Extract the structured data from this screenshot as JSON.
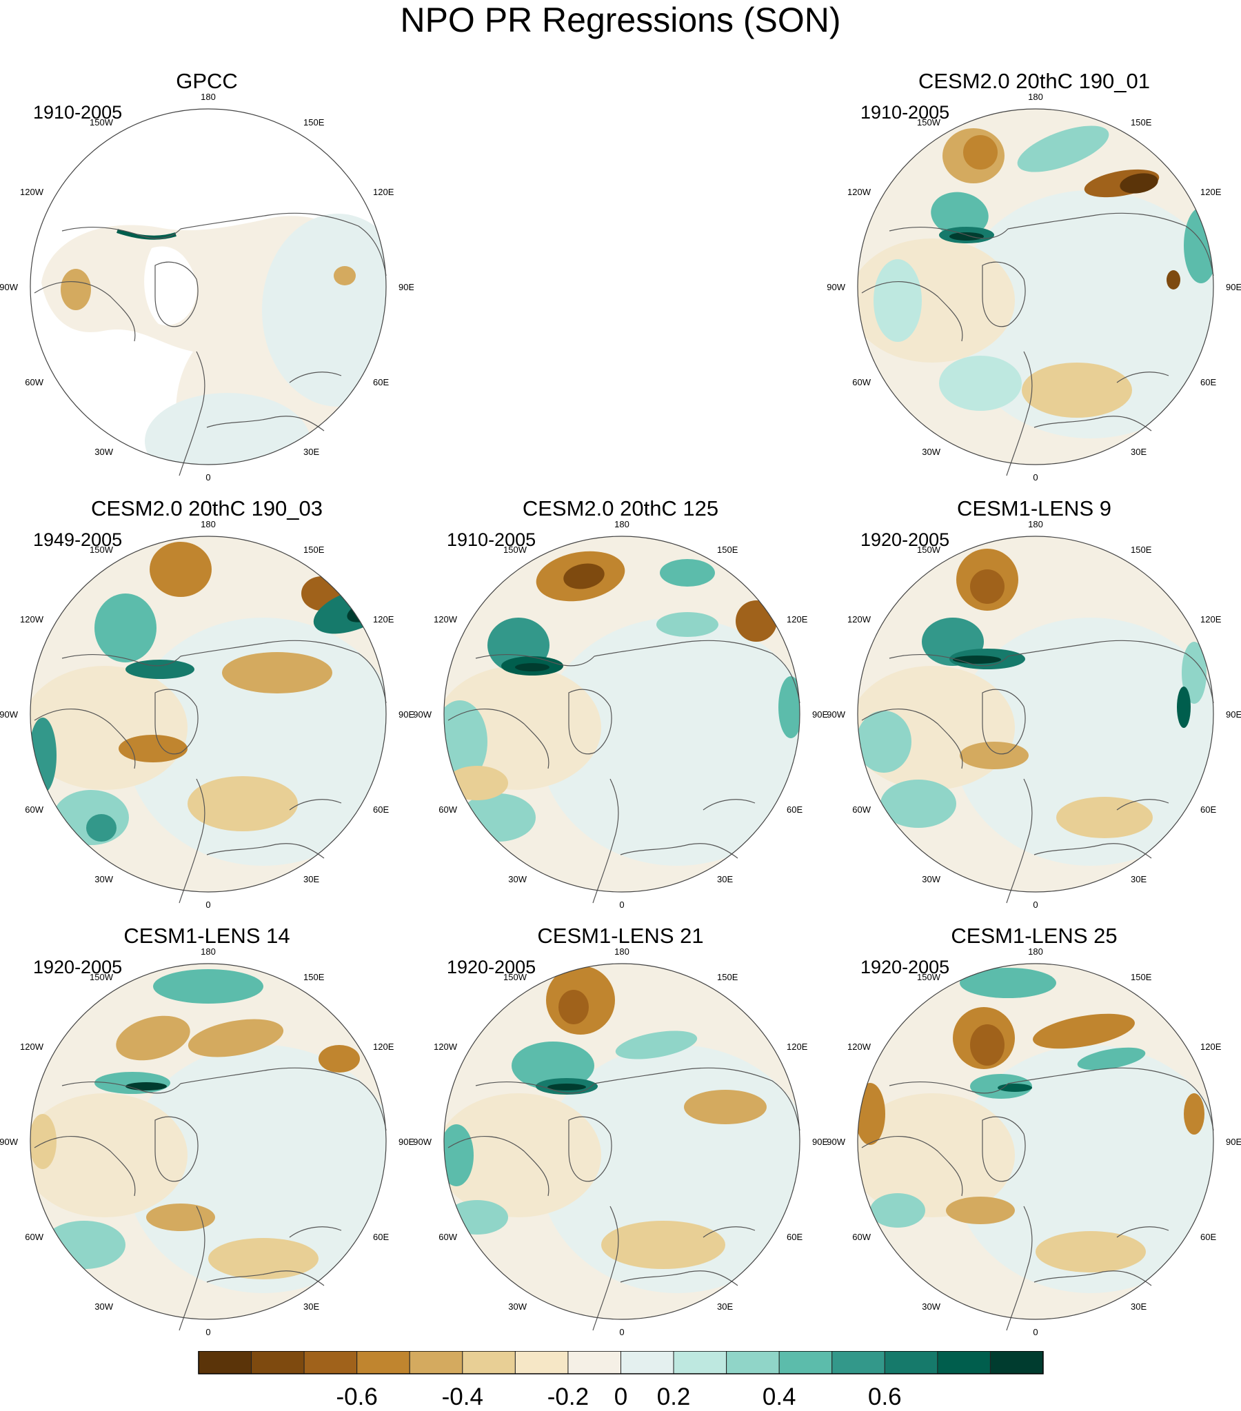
{
  "figure": {
    "title": "NPO PR Regressions (SON)"
  },
  "panels": [
    {
      "title": "GPCC",
      "period": "1910-2005",
      "masked_ocean": true
    },
    {
      "title": "CESM2.0 20thC 190_01",
      "period": "1910-2005",
      "masked_ocean": false
    },
    {
      "title": "CESM2.0 20thC 190_03",
      "period": "1949-2005",
      "masked_ocean": false
    },
    {
      "title": "CESM2.0 20thC 125",
      "period": "1910-2005",
      "masked_ocean": false
    },
    {
      "title": "CESM1-LENS 9",
      "period": "1920-2005",
      "masked_ocean": false
    },
    {
      "title": "CESM1-LENS 14",
      "period": "1920-2005",
      "masked_ocean": false
    },
    {
      "title": "CESM1-LENS 21",
      "period": "1920-2005",
      "masked_ocean": false
    },
    {
      "title": "CESM1-LENS 25",
      "period": "1920-2005",
      "masked_ocean": false
    }
  ],
  "longitude_labels": [
    "180",
    "150E",
    "120E",
    "90E",
    "60E",
    "30E",
    "0",
    "30W",
    "60W",
    "90W",
    "120W",
    "150W"
  ],
  "colorbar": {
    "colors": [
      "#5b3409",
      "#7e4a0f",
      "#a0621b",
      "#c0852f",
      "#d4aa5f",
      "#e8cf95",
      "#f6e7c6",
      "#f5f0e6",
      "#e4f0ef",
      "#bee8e0",
      "#90d5c8",
      "#5cbcab",
      "#33988a",
      "#167a6b",
      "#005e4d",
      "#003c2f"
    ],
    "tick_labels": [
      "-0.6",
      "-0.4",
      "-0.2",
      "0",
      "0.2",
      "0.4",
      "0.6"
    ]
  }
}
